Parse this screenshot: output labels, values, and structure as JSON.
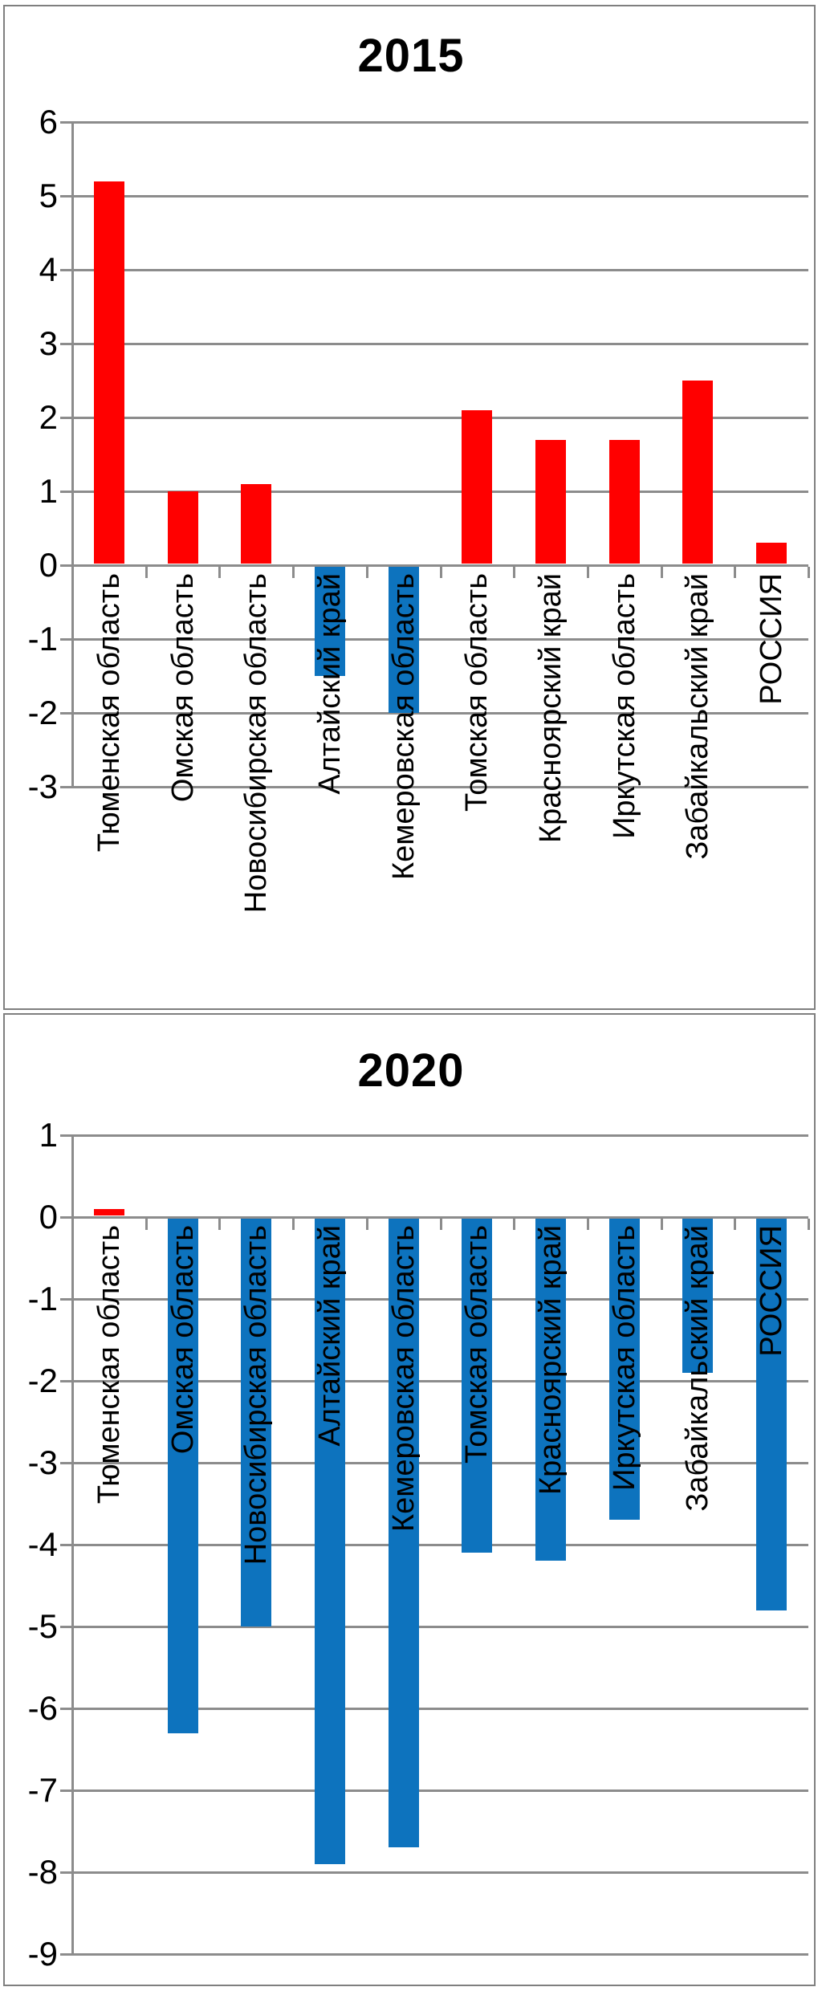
{
  "chart_data": [
    {
      "type": "bar",
      "title": "2015",
      "categories": [
        "Тюменская область",
        "Омская область",
        "Новосибирская область",
        "Алтайский край",
        "Кемеровская область",
        "Томская область",
        "Красноярский край",
        "Иркутская область",
        "Забайкальский край",
        "РОССИЯ"
      ],
      "values": [
        5.2,
        1.0,
        1.1,
        -1.5,
        -2.0,
        2.1,
        1.7,
        1.7,
        2.5,
        0.3
      ],
      "y_ticks": [
        6,
        5,
        4,
        3,
        2,
        1,
        0,
        -1,
        -2,
        -3
      ],
      "ylim": [
        -3,
        6
      ],
      "xlabel": "",
      "ylabel": "",
      "grid": true,
      "legend": "none"
    },
    {
      "type": "bar",
      "title": "2020",
      "categories": [
        "Тюменская область",
        "Омская область",
        "Новосибирская область",
        "Алтайский край",
        "Кемеровская область",
        "Томская область",
        "Красноярский край",
        "Иркутская область",
        "Забайкальский край",
        "РОССИЯ"
      ],
      "values": [
        0.1,
        -6.3,
        -5.0,
        -7.9,
        -7.7,
        -4.1,
        -4.2,
        -3.7,
        -1.9,
        -4.8
      ],
      "y_ticks": [
        1,
        0,
        -1,
        -2,
        -3,
        -4,
        -5,
        -6,
        -7,
        -8,
        -9
      ],
      "ylim": [
        -9,
        1
      ],
      "xlabel": "",
      "ylabel": "",
      "grid": true,
      "legend": "none"
    }
  ],
  "colors": {
    "positive_bar": "#FF0000",
    "negative_bar": "#0D73BE",
    "gridline": "#8C8C8C",
    "panel_border": "#7F7F7F",
    "text": "#000000",
    "background": "#FFFFFF"
  }
}
